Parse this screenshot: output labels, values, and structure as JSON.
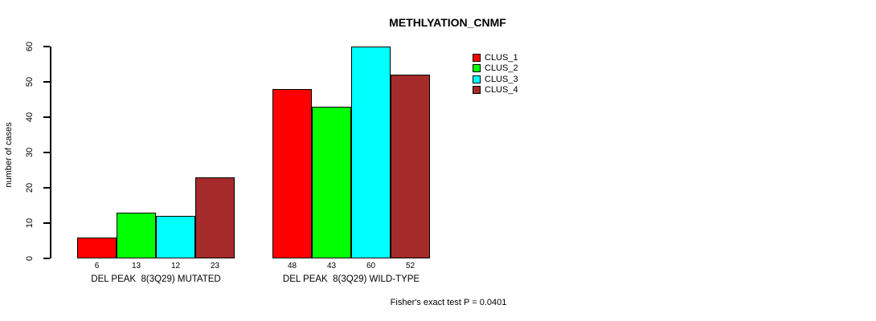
{
  "chart_data": {
    "type": "bar",
    "title": "METHLYATION_CNMF",
    "ylabel": "number of cases",
    "ylim": [
      0,
      60
    ],
    "yticks": [
      0,
      10,
      20,
      30,
      40,
      50,
      60
    ],
    "categories": [
      "DEL PEAK  8(3Q29) MUTATED",
      "DEL PEAK  8(3Q29) WILD-TYPE"
    ],
    "series": [
      {
        "name": "CLUS_1",
        "color": "#FF0000",
        "values": [
          6,
          48
        ]
      },
      {
        "name": "CLUS_2",
        "color": "#00FF00",
        "values": [
          13,
          43
        ]
      },
      {
        "name": "CLUS_3",
        "color": "#00FFFF",
        "values": [
          12,
          60
        ]
      },
      {
        "name": "CLUS_4",
        "color": "#A52A2A",
        "values": [
          23,
          52
        ]
      }
    ],
    "bar_value_labels": [
      [
        6,
        13,
        12,
        23
      ],
      [
        48,
        43,
        60,
        52
      ]
    ],
    "legend_position": "top-right",
    "grid": false,
    "footnote": "Fisher's exact test P = 0.0401"
  }
}
